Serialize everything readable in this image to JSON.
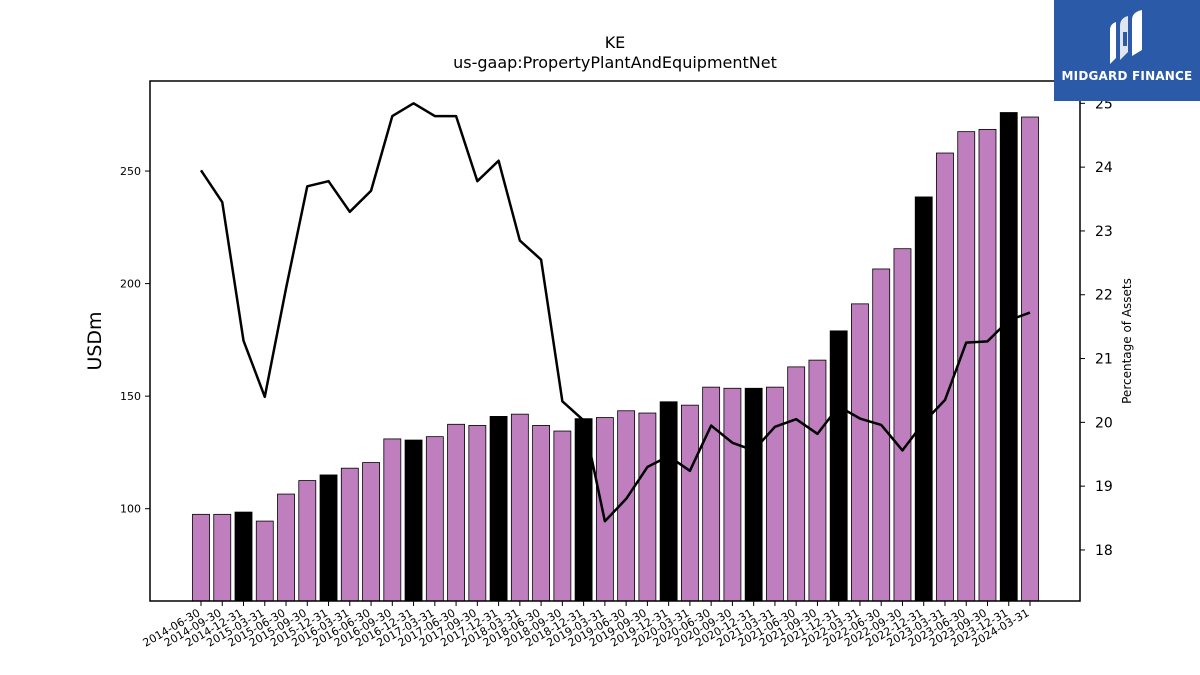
{
  "chart_data": {
    "type": "bar",
    "title": "KE",
    "subtitle": "us-gaap:PropertyPlantAndEquipmentNet",
    "ylabel": "USDm",
    "ylabel_right": "Percentage of Assets",
    "ylim": [
      59,
      290
    ],
    "ylim_right": [
      17.2,
      25.35
    ],
    "yticks": [
      100,
      150,
      200,
      250
    ],
    "yticks_right": [
      18,
      19,
      20,
      21,
      22,
      23,
      24,
      25
    ],
    "categories": [
      "2014-06-30",
      "2014-09-30",
      "2014-12-31",
      "2015-03-31",
      "2015-06-30",
      "2015-09-30",
      "2015-12-31",
      "2016-03-31",
      "2016-06-30",
      "2016-09-30",
      "2016-12-31",
      "2017-03-31",
      "2017-06-30",
      "2017-09-30",
      "2017-12-31",
      "2018-03-31",
      "2018-06-30",
      "2018-09-30",
      "2018-12-31",
      "2019-03-31",
      "2019-06-30",
      "2019-09-30",
      "2019-12-31",
      "2020-03-31",
      "2020-06-30",
      "2020-09-30",
      "2020-12-31",
      "2021-03-31",
      "2021-06-30",
      "2021-09-30",
      "2021-12-31",
      "2022-03-31",
      "2022-06-30",
      "2022-09-30",
      "2022-12-31",
      "2023-03-31",
      "2023-06-30",
      "2023-09-30",
      "2023-12-31",
      "2024-03-31"
    ],
    "series": [
      {
        "name": "",
        "kind": "bar",
        "values": [
          97.5,
          97.5,
          98.5,
          94.5,
          106.5,
          112.5,
          115,
          118,
          120.5,
          131,
          130.5,
          132,
          137.5,
          137,
          141,
          142,
          137,
          134.5,
          140,
          140.5,
          143.5,
          142.5,
          147.5,
          146,
          154,
          153.5,
          153.5,
          154,
          163,
          166,
          179,
          191,
          206.5,
          215.5,
          238.5,
          258,
          267.5,
          268.5,
          276,
          274
        ]
      },
      {
        "name": "",
        "kind": "line",
        "axis": "right",
        "values": [
          23.95,
          23.45,
          21.28,
          20.4,
          22.1,
          23.7,
          23.78,
          23.3,
          23.63,
          24.8,
          25.0,
          24.8,
          24.8,
          23.78,
          24.1,
          22.85,
          22.55,
          20.33,
          20.03,
          18.45,
          18.8,
          19.3,
          19.47,
          19.24,
          19.95,
          19.68,
          19.56,
          19.93,
          20.05,
          19.82,
          20.25,
          20.06,
          19.96,
          19.56,
          20.0,
          20.35,
          21.25,
          21.27,
          21.6,
          21.72
        ]
      }
    ],
    "bar_colors": {
      "default": "#bf7fbf",
      "year_end": "#000000"
    },
    "line_color": "#000000",
    "grid": false,
    "legend": "none"
  },
  "logo": {
    "text": "MIDGARD FINANCE",
    "background": "#2b5ba8",
    "foreground": "#ffffff"
  }
}
